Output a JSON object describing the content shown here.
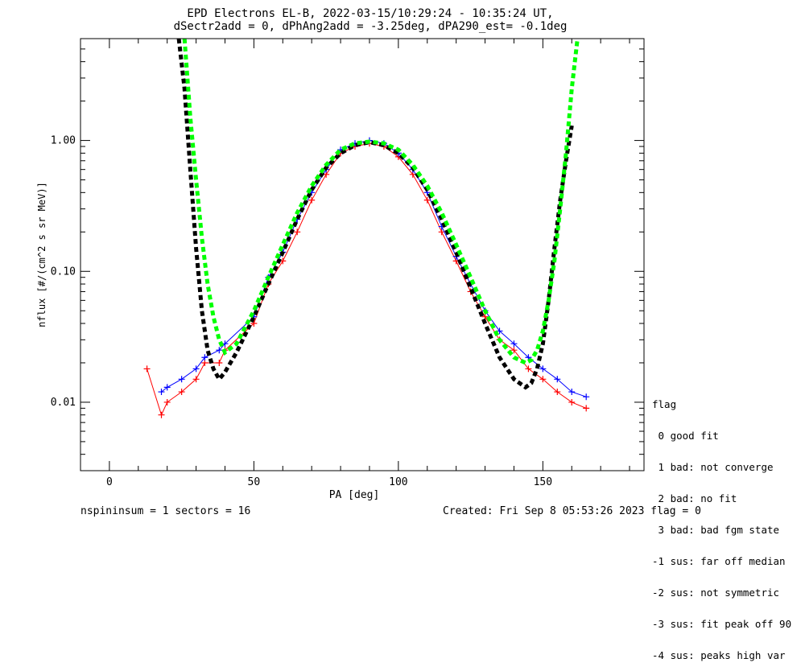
{
  "chart_data": {
    "type": "scatter",
    "title": "EPD Electrons EL-B, 2022-03-15/10:29:24 - 10:35:24 UT,",
    "subtitle": "dSectr2add = 0, dPhAng2add = -3.25deg, dPA290_est=  -0.1deg",
    "xlabel": "PA [deg]",
    "ylabel": "nflux [#/(cm^2 s sr MeV)]",
    "xlim": [
      -10,
      185
    ],
    "ylim": [
      0.003,
      6
    ],
    "yscale": "log",
    "xticks": [
      0,
      50,
      100,
      150
    ],
    "yticks": [
      {
        "value": 0.01,
        "label": "0.01"
      },
      {
        "value": 0.1,
        "label": "0.10"
      },
      {
        "value": 1.0,
        "label": "1.00"
      }
    ],
    "series": [
      {
        "color": "#ff0000",
        "kind": "data",
        "x": [
          13,
          18,
          20,
          25,
          30,
          33,
          38,
          40,
          50,
          55,
          60,
          65,
          70,
          75,
          80,
          85,
          90,
          95,
          100,
          105,
          110,
          115,
          120,
          125,
          130,
          135,
          140,
          145,
          150,
          155,
          160,
          165
        ],
        "y": [
          0.018,
          0.008,
          0.01,
          0.012,
          0.015,
          0.02,
          0.02,
          0.025,
          0.04,
          0.08,
          0.12,
          0.2,
          0.35,
          0.55,
          0.8,
          0.9,
          0.95,
          0.9,
          0.75,
          0.55,
          0.35,
          0.2,
          0.12,
          0.07,
          0.045,
          0.03,
          0.025,
          0.018,
          0.015,
          0.012,
          0.01,
          0.009
        ]
      },
      {
        "color": "#0000ff",
        "kind": "data",
        "x": [
          18,
          20,
          25,
          30,
          33,
          38,
          40,
          50,
          55,
          60,
          65,
          70,
          75,
          80,
          85,
          90,
          95,
          100,
          105,
          110,
          115,
          120,
          125,
          130,
          135,
          140,
          145,
          150,
          155,
          160,
          165
        ],
        "y": [
          0.012,
          0.013,
          0.015,
          0.018,
          0.022,
          0.025,
          0.028,
          0.045,
          0.09,
          0.14,
          0.25,
          0.4,
          0.6,
          0.85,
          0.95,
          1.0,
          0.95,
          0.8,
          0.6,
          0.4,
          0.22,
          0.13,
          0.08,
          0.05,
          0.035,
          0.028,
          0.022,
          0.018,
          0.015,
          0.012,
          0.011
        ]
      },
      {
        "color": "#000000",
        "kind": "fit",
        "x": [
          24,
          26,
          28,
          30,
          32,
          34,
          36,
          38,
          40,
          44,
          50,
          55,
          60,
          65,
          70,
          75,
          80,
          85,
          90,
          95,
          100,
          105,
          110,
          115,
          120,
          125,
          130,
          135,
          140,
          144,
          146,
          148,
          150,
          152,
          154,
          156,
          158,
          160
        ],
        "y": [
          6,
          2.5,
          0.6,
          0.15,
          0.05,
          0.025,
          0.018,
          0.015,
          0.017,
          0.024,
          0.045,
          0.08,
          0.14,
          0.25,
          0.42,
          0.62,
          0.8,
          0.92,
          0.97,
          0.92,
          0.8,
          0.62,
          0.42,
          0.25,
          0.14,
          0.075,
          0.04,
          0.022,
          0.015,
          0.013,
          0.014,
          0.018,
          0.028,
          0.06,
          0.15,
          0.35,
          0.7,
          1.3
        ]
      },
      {
        "color": "#00ff00",
        "kind": "fit",
        "x": [
          26,
          28,
          30,
          32,
          34,
          36,
          38,
          40,
          44,
          50,
          55,
          60,
          65,
          70,
          75,
          80,
          85,
          90,
          95,
          100,
          105,
          110,
          115,
          120,
          125,
          130,
          135,
          140,
          144,
          146,
          148,
          150,
          152,
          154,
          156,
          158,
          160,
          162
        ],
        "y": [
          6,
          1.5,
          0.5,
          0.18,
          0.08,
          0.045,
          0.03,
          0.024,
          0.028,
          0.05,
          0.09,
          0.16,
          0.28,
          0.45,
          0.65,
          0.85,
          0.95,
          0.98,
          0.95,
          0.85,
          0.65,
          0.45,
          0.28,
          0.16,
          0.09,
          0.05,
          0.03,
          0.022,
          0.02,
          0.021,
          0.025,
          0.035,
          0.06,
          0.12,
          0.3,
          0.8,
          2.5,
          6
        ]
      }
    ]
  },
  "legend": {
    "title": "flag",
    "items": [
      " 0 good fit",
      " 1 bad: not converge",
      " 2 bad: no fit",
      " 3 bad: bad fgm state",
      "-1 sus: far off median",
      "-2 sus: not symmetric",
      "-3 sus: fit peak off 90",
      "-4 sus: peaks high var"
    ]
  },
  "footer": {
    "left": "nspininsum =  1  sectors = 16",
    "right": "Created: Fri Sep  8 05:53:26 2023   flag = 0"
  }
}
